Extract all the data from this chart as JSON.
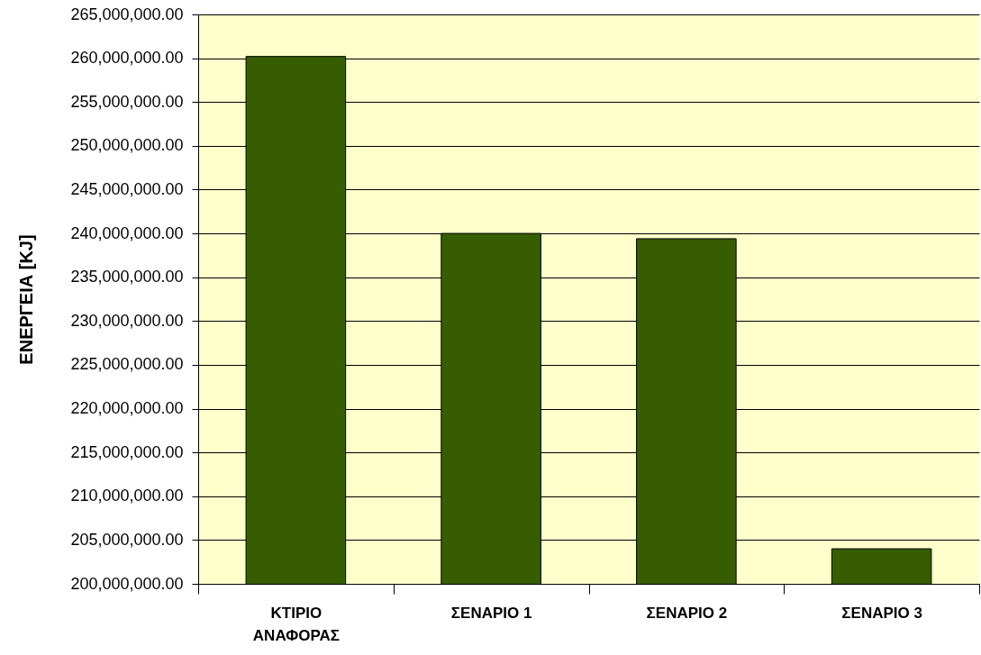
{
  "chart_data": {
    "type": "bar",
    "ylabel": "ΕΝΕΡΓΕΙΑ [KJ]",
    "categories": [
      "ΚΤΙΡΙΟ ΑΝΑΦΟΡΑΣ",
      "ΣΕΝΑΡΙΟ 1",
      "ΣΕΝΑΡΙΟ 2",
      "ΣΕΝΑΡΙΟ 3"
    ],
    "values": [
      260200000,
      240000000,
      239400000,
      204000000
    ],
    "color": "#365e00",
    "ylim": [
      200000000,
      265000000
    ],
    "yticks": [
      {
        "value": 200000000,
        "label": "200,000,000.00"
      },
      {
        "value": 205000000,
        "label": "205,000,000.00"
      },
      {
        "value": 210000000,
        "label": "210,000,000.00"
      },
      {
        "value": 215000000,
        "label": "215,000,000.00"
      },
      {
        "value": 220000000,
        "label": "220,000,000.00"
      },
      {
        "value": 225000000,
        "label": "225,000,000.00"
      },
      {
        "value": 230000000,
        "label": "230,000,000.00"
      },
      {
        "value": 235000000,
        "label": "235,000,000.00"
      },
      {
        "value": 240000000,
        "label": "240,000,000.00"
      },
      {
        "value": 245000000,
        "label": "245,000,000.00"
      },
      {
        "value": 250000000,
        "label": "250,000,000.00"
      },
      {
        "value": 255000000,
        "label": "255,000,000.00"
      },
      {
        "value": 260000000,
        "label": "260,000,000.00"
      },
      {
        "value": 265000000,
        "label": "265,000,000.00"
      }
    ],
    "grid": "y"
  }
}
